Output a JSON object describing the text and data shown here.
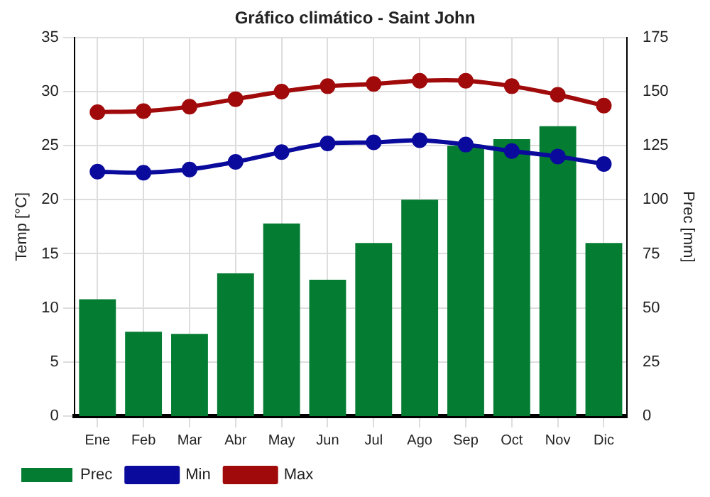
{
  "chart_data": {
    "type": "bar",
    "title": "Gráfico climático - Saint John",
    "ylabel": "Temp [°C]",
    "y2label": "Prec [mm]",
    "categories": [
      "Ene",
      "Feb",
      "Mar",
      "Abr",
      "May",
      "Jun",
      "Jul",
      "Ago",
      "Sep",
      "Oct",
      "Nov",
      "Dic"
    ],
    "series": [
      {
        "name": "Prec",
        "axis": "y2",
        "color": "#047c32",
        "values": [
          54,
          39,
          38,
          66,
          89,
          63,
          80,
          100,
          125,
          128,
          134,
          80
        ]
      },
      {
        "name": "Min",
        "type": "line",
        "color": "#0a0a9c",
        "values": [
          22.6,
          22.5,
          22.8,
          23.5,
          24.4,
          25.2,
          25.3,
          25.5,
          25.1,
          24.5,
          24.0,
          23.3
        ]
      },
      {
        "name": "Max",
        "type": "line",
        "color": "#a00a0a",
        "values": [
          28.1,
          28.2,
          28.6,
          29.3,
          30.0,
          30.5,
          30.7,
          31.0,
          31.0,
          30.5,
          29.7,
          28.7
        ]
      }
    ],
    "ylim": [
      0,
      35
    ],
    "yticks": [
      0,
      5,
      10,
      15,
      20,
      25,
      30,
      35
    ],
    "y2lim": [
      0,
      175
    ],
    "y2ticks": [
      0,
      25,
      50,
      75,
      100,
      125,
      150,
      175
    ],
    "grid": true,
    "legend": "bottom left",
    "marker": "circle",
    "line_style": "solid"
  }
}
